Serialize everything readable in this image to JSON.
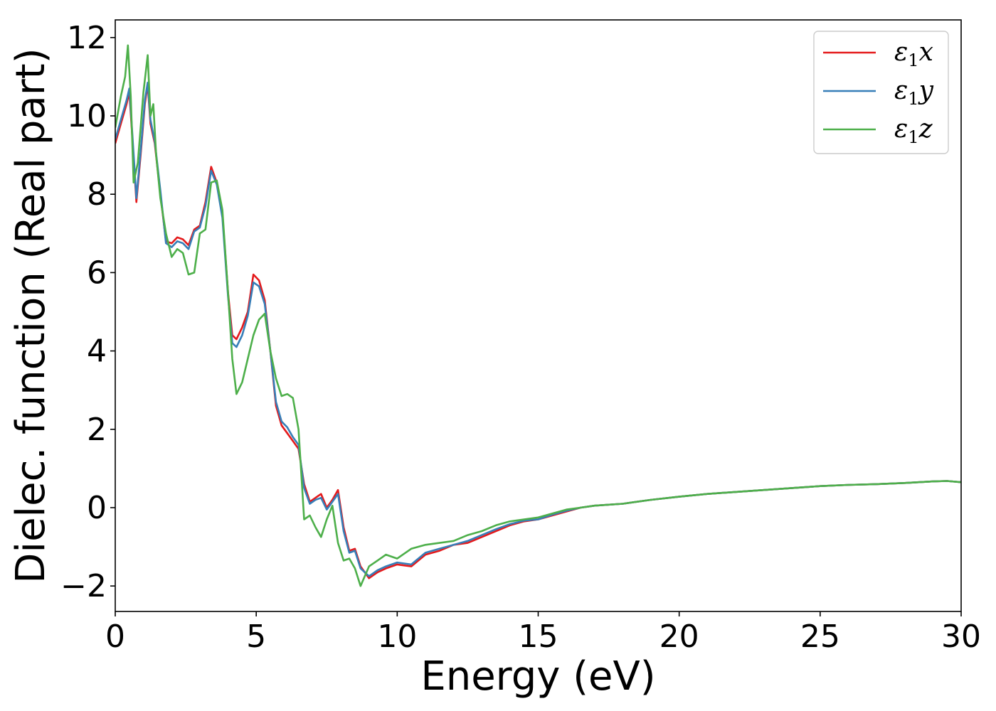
{
  "chart_data": {
    "type": "line",
    "xlabel": "Energy (eV)",
    "ylabel": "Dielec. function (Real part)",
    "xlim": [
      0,
      30
    ],
    "ylim": [
      -2.65,
      12.45
    ],
    "xticks": [
      0,
      5,
      10,
      15,
      20,
      25,
      30
    ],
    "yticks": [
      -2,
      0,
      2,
      4,
      6,
      8,
      10,
      12
    ],
    "xtick_labels": [
      "0",
      "5",
      "10",
      "15",
      "20",
      "25",
      "30"
    ],
    "ytick_labels": [
      "−2",
      "0",
      "2",
      "4",
      "6",
      "8",
      "10",
      "12"
    ],
    "grid": false,
    "legend_position": "top-right",
    "series": [
      {
        "name": "ε₁x",
        "legend": {
          "symbol": "ε",
          "sub": "1",
          "tail": "x"
        },
        "color": "#e41a1c",
        "x": [
          0,
          0.2,
          0.4,
          0.5,
          0.6,
          0.75,
          0.9,
          1.05,
          1.15,
          1.25,
          1.4,
          1.6,
          1.8,
          2.0,
          2.2,
          2.4,
          2.6,
          2.8,
          3.0,
          3.2,
          3.4,
          3.6,
          3.8,
          4.0,
          4.15,
          4.3,
          4.5,
          4.7,
          4.9,
          5.1,
          5.3,
          5.5,
          5.7,
          5.9,
          6.1,
          6.3,
          6.5,
          6.7,
          6.9,
          7.1,
          7.3,
          7.5,
          7.7,
          7.9,
          8.1,
          8.3,
          8.5,
          8.7,
          9.0,
          9.3,
          9.6,
          10.0,
          10.5,
          11.0,
          11.5,
          12.0,
          12.5,
          13.0,
          13.5,
          14.0,
          14.5,
          15.0,
          15.5,
          16.0,
          16.5,
          17.0,
          18.0,
          19.0,
          20.0,
          21.0,
          22.0,
          23.0,
          24.0,
          25.0,
          26.0,
          27.0,
          28.0,
          29.0,
          29.5,
          30.0
        ],
        "y": [
          9.3,
          9.8,
          10.3,
          10.6,
          9.5,
          7.8,
          9.0,
          10.3,
          10.8,
          9.8,
          9.3,
          8.0,
          6.8,
          6.75,
          6.9,
          6.85,
          6.7,
          7.1,
          7.2,
          7.8,
          8.7,
          8.3,
          7.5,
          5.5,
          4.4,
          4.3,
          4.6,
          5.0,
          5.95,
          5.8,
          5.3,
          4.0,
          2.6,
          2.1,
          1.9,
          1.7,
          1.5,
          0.6,
          0.15,
          0.25,
          0.35,
          0.0,
          0.2,
          0.45,
          -0.5,
          -1.1,
          -1.05,
          -1.5,
          -1.8,
          -1.65,
          -1.55,
          -1.45,
          -1.5,
          -1.2,
          -1.1,
          -0.95,
          -0.9,
          -0.75,
          -0.6,
          -0.45,
          -0.35,
          -0.3,
          -0.2,
          -0.1,
          0.0,
          0.05,
          0.1,
          0.2,
          0.28,
          0.35,
          0.4,
          0.45,
          0.5,
          0.55,
          0.58,
          0.6,
          0.63,
          0.67,
          0.68,
          0.65
        ]
      },
      {
        "name": "ε₁y",
        "legend": {
          "symbol": "ε",
          "sub": "1",
          "tail": "y"
        },
        "color": "#377eb8",
        "x": [
          0,
          0.2,
          0.4,
          0.5,
          0.6,
          0.75,
          0.9,
          1.05,
          1.15,
          1.25,
          1.4,
          1.6,
          1.8,
          2.0,
          2.2,
          2.4,
          2.6,
          2.8,
          3.0,
          3.2,
          3.4,
          3.6,
          3.8,
          4.0,
          4.15,
          4.3,
          4.5,
          4.7,
          4.9,
          5.1,
          5.3,
          5.5,
          5.7,
          5.9,
          6.1,
          6.3,
          6.5,
          6.7,
          6.9,
          7.1,
          7.3,
          7.5,
          7.7,
          7.9,
          8.1,
          8.3,
          8.5,
          8.7,
          9.0,
          9.3,
          9.6,
          10.0,
          10.5,
          11.0,
          11.5,
          12.0,
          12.5,
          13.0,
          13.5,
          14.0,
          14.5,
          15.0,
          15.5,
          16.0,
          16.5,
          17.0,
          18.0,
          19.0,
          20.0,
          21.0,
          22.0,
          23.0,
          24.0,
          25.0,
          26.0,
          27.0,
          28.0,
          29.0,
          29.5,
          30.0
        ],
        "y": [
          9.4,
          9.9,
          10.4,
          10.7,
          9.6,
          7.9,
          9.1,
          10.4,
          10.85,
          9.9,
          9.35,
          8.1,
          6.75,
          6.65,
          6.8,
          6.75,
          6.6,
          7.05,
          7.15,
          7.7,
          8.6,
          8.25,
          7.4,
          5.4,
          4.2,
          4.1,
          4.4,
          4.9,
          5.75,
          5.65,
          5.2,
          4.0,
          2.7,
          2.2,
          2.05,
          1.8,
          1.6,
          0.5,
          0.1,
          0.2,
          0.25,
          -0.05,
          0.15,
          0.35,
          -0.6,
          -1.15,
          -1.1,
          -1.55,
          -1.75,
          -1.6,
          -1.5,
          -1.4,
          -1.45,
          -1.15,
          -1.05,
          -0.95,
          -0.85,
          -0.7,
          -0.55,
          -0.42,
          -0.33,
          -0.3,
          -0.18,
          -0.08,
          0.0,
          0.05,
          0.1,
          0.2,
          0.28,
          0.35,
          0.4,
          0.45,
          0.5,
          0.55,
          0.58,
          0.6,
          0.63,
          0.67,
          0.68,
          0.65
        ]
      },
      {
        "name": "ε₁z",
        "legend": {
          "symbol": "ε",
          "sub": "1",
          "tail": "z"
        },
        "color": "#4daf4a",
        "x": [
          0,
          0.2,
          0.35,
          0.45,
          0.55,
          0.65,
          0.8,
          1.0,
          1.15,
          1.25,
          1.35,
          1.45,
          1.6,
          1.8,
          2.0,
          2.2,
          2.4,
          2.6,
          2.8,
          3.0,
          3.2,
          3.4,
          3.6,
          3.8,
          4.0,
          4.15,
          4.3,
          4.5,
          4.7,
          4.9,
          5.1,
          5.3,
          5.5,
          5.7,
          5.9,
          6.1,
          6.3,
          6.5,
          6.7,
          6.9,
          7.1,
          7.3,
          7.5,
          7.7,
          7.9,
          8.1,
          8.3,
          8.5,
          8.7,
          9.0,
          9.3,
          9.6,
          10.0,
          10.5,
          11.0,
          11.5,
          12.0,
          12.5,
          13.0,
          13.5,
          14.0,
          14.5,
          15.0,
          15.5,
          16.0,
          16.5,
          17.0,
          18.0,
          19.0,
          20.0,
          21.0,
          22.0,
          23.0,
          24.0,
          25.0,
          26.0,
          27.0,
          28.0,
          29.0,
          29.5,
          30.0
        ],
        "y": [
          9.7,
          10.5,
          11.0,
          11.8,
          10.5,
          8.3,
          8.8,
          10.6,
          11.55,
          10.0,
          10.3,
          9.0,
          7.9,
          7.0,
          6.4,
          6.6,
          6.5,
          5.95,
          6.0,
          7.0,
          7.1,
          8.3,
          8.35,
          7.6,
          5.5,
          3.8,
          2.9,
          3.2,
          3.8,
          4.4,
          4.8,
          4.95,
          4.0,
          3.3,
          2.85,
          2.9,
          2.8,
          2.0,
          -0.3,
          -0.2,
          -0.5,
          -0.75,
          -0.3,
          0.05,
          -0.9,
          -1.35,
          -1.3,
          -1.55,
          -2.0,
          -1.5,
          -1.35,
          -1.2,
          -1.3,
          -1.05,
          -0.95,
          -0.9,
          -0.85,
          -0.7,
          -0.6,
          -0.45,
          -0.35,
          -0.3,
          -0.25,
          -0.15,
          -0.05,
          0.0,
          0.05,
          0.1,
          0.2,
          0.28,
          0.35,
          0.4,
          0.45,
          0.5,
          0.55,
          0.58,
          0.6,
          0.63,
          0.67,
          0.68,
          0.65
        ]
      }
    ]
  }
}
